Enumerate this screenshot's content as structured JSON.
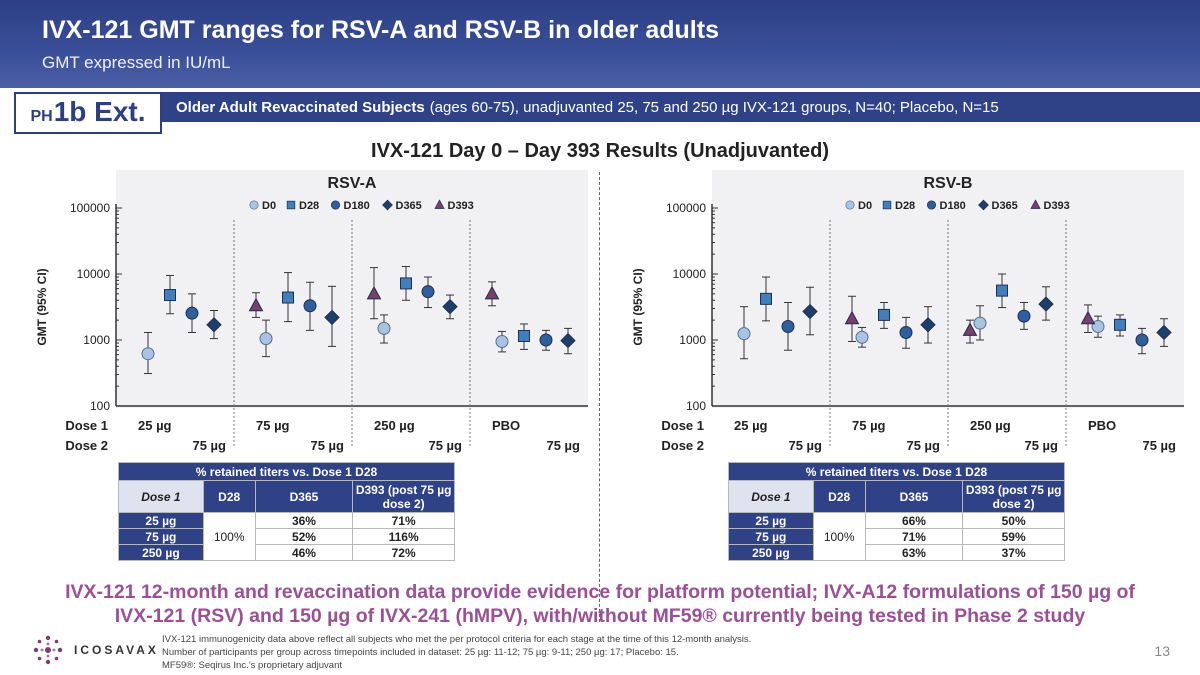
{
  "header": {
    "title": "IVX-121 GMT ranges for RSV-A and RSV-B in older adults",
    "subtitle": "GMT expressed in IU/mL"
  },
  "badge": {
    "prefix": "PH",
    "main": "1b Ext."
  },
  "cohort": {
    "bold": "Older Adult Revaccinated Subjects",
    "rest": "(ages 60-75), unadjuvanted 25, 75 and 250 µg IVX-121 groups, N=40; Placebo, N=15"
  },
  "results_title": "IVX-121 Day 0 – Day 393 Results (Unadjuvanted)",
  "colors": {
    "header": "#2c3f86",
    "D0": "#a9c3e3",
    "D28": "#3f7fbf",
    "D180": "#2f5f9f",
    "D365": "#1f3f6b",
    "D393": "#7a3f6b",
    "claim": "#9b4f96"
  },
  "chart_data": [
    {
      "type": "scatter",
      "title": "RSV-A",
      "ylabel": "GMT (95% CI)",
      "y_scale": "log",
      "ylim": [
        100,
        100000
      ],
      "yticks": [
        "100",
        "1000",
        "10000",
        "100000"
      ],
      "row_labels": [
        "Dose 1",
        "Dose 2"
      ],
      "groups": [
        {
          "dose1": "25 µg",
          "dose2": "75 µg"
        },
        {
          "dose1": "75 µg",
          "dose2": "75 µg"
        },
        {
          "dose1": "250 µg",
          "dose2": "75 µg"
        },
        {
          "dose1": "PBO",
          "dose2": "75 µg"
        }
      ],
      "legend": [
        "D0",
        "D28",
        "D180",
        "D365",
        "D393"
      ],
      "series": [
        {
          "name": "D0",
          "values": [
            {
              "y": 620,
              "lo": 310,
              "hi": 1300
            },
            {
              "y": 1050,
              "lo": 560,
              "hi": 2000
            },
            {
              "y": 1500,
              "lo": 900,
              "hi": 2400
            },
            {
              "y": 950,
              "lo": 660,
              "hi": 1350
            }
          ]
        },
        {
          "name": "D28",
          "values": [
            {
              "y": 4800,
              "lo": 2500,
              "hi": 9500
            },
            {
              "y": 4400,
              "lo": 1900,
              "hi": 10500
            },
            {
              "y": 7200,
              "lo": 4000,
              "hi": 13000
            },
            {
              "y": 1150,
              "lo": 720,
              "hi": 1750
            }
          ]
        },
        {
          "name": "D180",
          "values": [
            {
              "y": 2550,
              "lo": 1300,
              "hi": 5000
            },
            {
              "y": 3300,
              "lo": 1400,
              "hi": 7500
            },
            {
              "y": 5400,
              "lo": 3100,
              "hi": 9000
            },
            {
              "y": 1000,
              "lo": 700,
              "hi": 1400
            }
          ]
        },
        {
          "name": "D365",
          "values": [
            {
              "y": 1700,
              "lo": 1050,
              "hi": 2800
            },
            {
              "y": 2200,
              "lo": 800,
              "hi": 6500
            },
            {
              "y": 3200,
              "lo": 2100,
              "hi": 4800
            },
            {
              "y": 980,
              "lo": 620,
              "hi": 1500
            }
          ]
        },
        {
          "name": "D393",
          "values": [
            {
              "y": 3300,
              "lo": 2200,
              "hi": 5200
            },
            {
              "y": 5000,
              "lo": 2100,
              "hi": 12500
            },
            {
              "y": 5000,
              "lo": 3300,
              "hi": 7600
            },
            {
              "y": 4900,
              "lo": 2600,
              "hi": 9200
            }
          ]
        }
      ]
    },
    {
      "type": "scatter",
      "title": "RSV-B",
      "ylabel": "GMT (95% CI)",
      "y_scale": "log",
      "ylim": [
        100,
        100000
      ],
      "yticks": [
        "100",
        "1000",
        "10000",
        "100000"
      ],
      "row_labels": [
        "Dose 1",
        "Dose 2"
      ],
      "groups": [
        {
          "dose1": "25 µg",
          "dose2": "75 µg"
        },
        {
          "dose1": "75 µg",
          "dose2": "75 µg"
        },
        {
          "dose1": "250 µg",
          "dose2": "75 µg"
        },
        {
          "dose1": "PBO",
          "dose2": "75 µg"
        }
      ],
      "legend": [
        "D0",
        "D28",
        "D180",
        "D365",
        "D393"
      ],
      "series": [
        {
          "name": "D0",
          "values": [
            {
              "y": 1250,
              "lo": 520,
              "hi": 3200
            },
            {
              "y": 1100,
              "lo": 780,
              "hi": 1550
            },
            {
              "y": 1800,
              "lo": 1000,
              "hi": 3300
            },
            {
              "y": 1600,
              "lo": 1100,
              "hi": 2300
            }
          ]
        },
        {
          "name": "D28",
          "values": [
            {
              "y": 4200,
              "lo": 1950,
              "hi": 9000
            },
            {
              "y": 2400,
              "lo": 1500,
              "hi": 3700
            },
            {
              "y": 5600,
              "lo": 3100,
              "hi": 10000
            },
            {
              "y": 1700,
              "lo": 1150,
              "hi": 2400
            }
          ]
        },
        {
          "name": "D180",
          "values": [
            {
              "y": 1600,
              "lo": 700,
              "hi": 3700
            },
            {
              "y": 1300,
              "lo": 750,
              "hi": 2200
            },
            {
              "y": 2300,
              "lo": 1450,
              "hi": 3700
            },
            {
              "y": 1000,
              "lo": 620,
              "hi": 1500
            }
          ]
        },
        {
          "name": "D365",
          "values": [
            {
              "y": 2700,
              "lo": 1200,
              "hi": 6300
            },
            {
              "y": 1700,
              "lo": 900,
              "hi": 3200
            },
            {
              "y": 3500,
              "lo": 2000,
              "hi": 6400
            },
            {
              "y": 1300,
              "lo": 800,
              "hi": 2100
            }
          ]
        },
        {
          "name": "D393",
          "values": [
            {
              "y": 2100,
              "lo": 950,
              "hi": 4600
            },
            {
              "y": 1400,
              "lo": 900,
              "hi": 2000
            },
            {
              "y": 2100,
              "lo": 1300,
              "hi": 3400
            },
            {
              "y": 2200,
              "lo": 1200,
              "hi": 4000
            }
          ]
        }
      ]
    }
  ],
  "tables": [
    {
      "caption": "% retained titers vs. Dose 1 D28",
      "headers": [
        "Dose 1",
        "D28",
        "D365",
        "D393 (post 75 µg dose 2)"
      ],
      "d28_value": "100%",
      "rows": [
        {
          "dose": "25 µg",
          "d365": "36%",
          "d393": "71%"
        },
        {
          "dose": "75 µg",
          "d365": "52%",
          "d393": "116%"
        },
        {
          "dose": "250 µg",
          "d365": "46%",
          "d393": "72%"
        }
      ]
    },
    {
      "caption": "% retained titers vs. Dose 1 D28",
      "headers": [
        "Dose 1",
        "D28",
        "D365",
        "D393 (post 75 µg dose 2)"
      ],
      "d28_value": "100%",
      "rows": [
        {
          "dose": "25 µg",
          "d365": "66%",
          "d393": "50%"
        },
        {
          "dose": "75 µg",
          "d365": "71%",
          "d393": "59%"
        },
        {
          "dose": "250 µg",
          "d365": "63%",
          "d393": "37%"
        }
      ]
    }
  ],
  "claim": "IVX-121 12-month and revaccination data provide evidence for platform potential; IVX-A12 formulations of 150 µg of IVX-121 (RSV) and 150 µg of IVX-241 (hMPV), with/without MF59® currently being tested in Phase 2 study",
  "logo_text": "ICOSAVAX",
  "footnotes": [
    "IVX-121 immunogenicity data above reflect all subjects who met the per protocol criteria for each stage at the time of this 12-month analysis.",
    "Number of participants per group across timepoints included in dataset: 25 µg: 11-12; 75 µg: 9-11; 250 µg: 17; Placebo: 15.",
    "MF59®: Seqirus Inc.’s proprietary adjuvant"
  ],
  "page_number": "13"
}
